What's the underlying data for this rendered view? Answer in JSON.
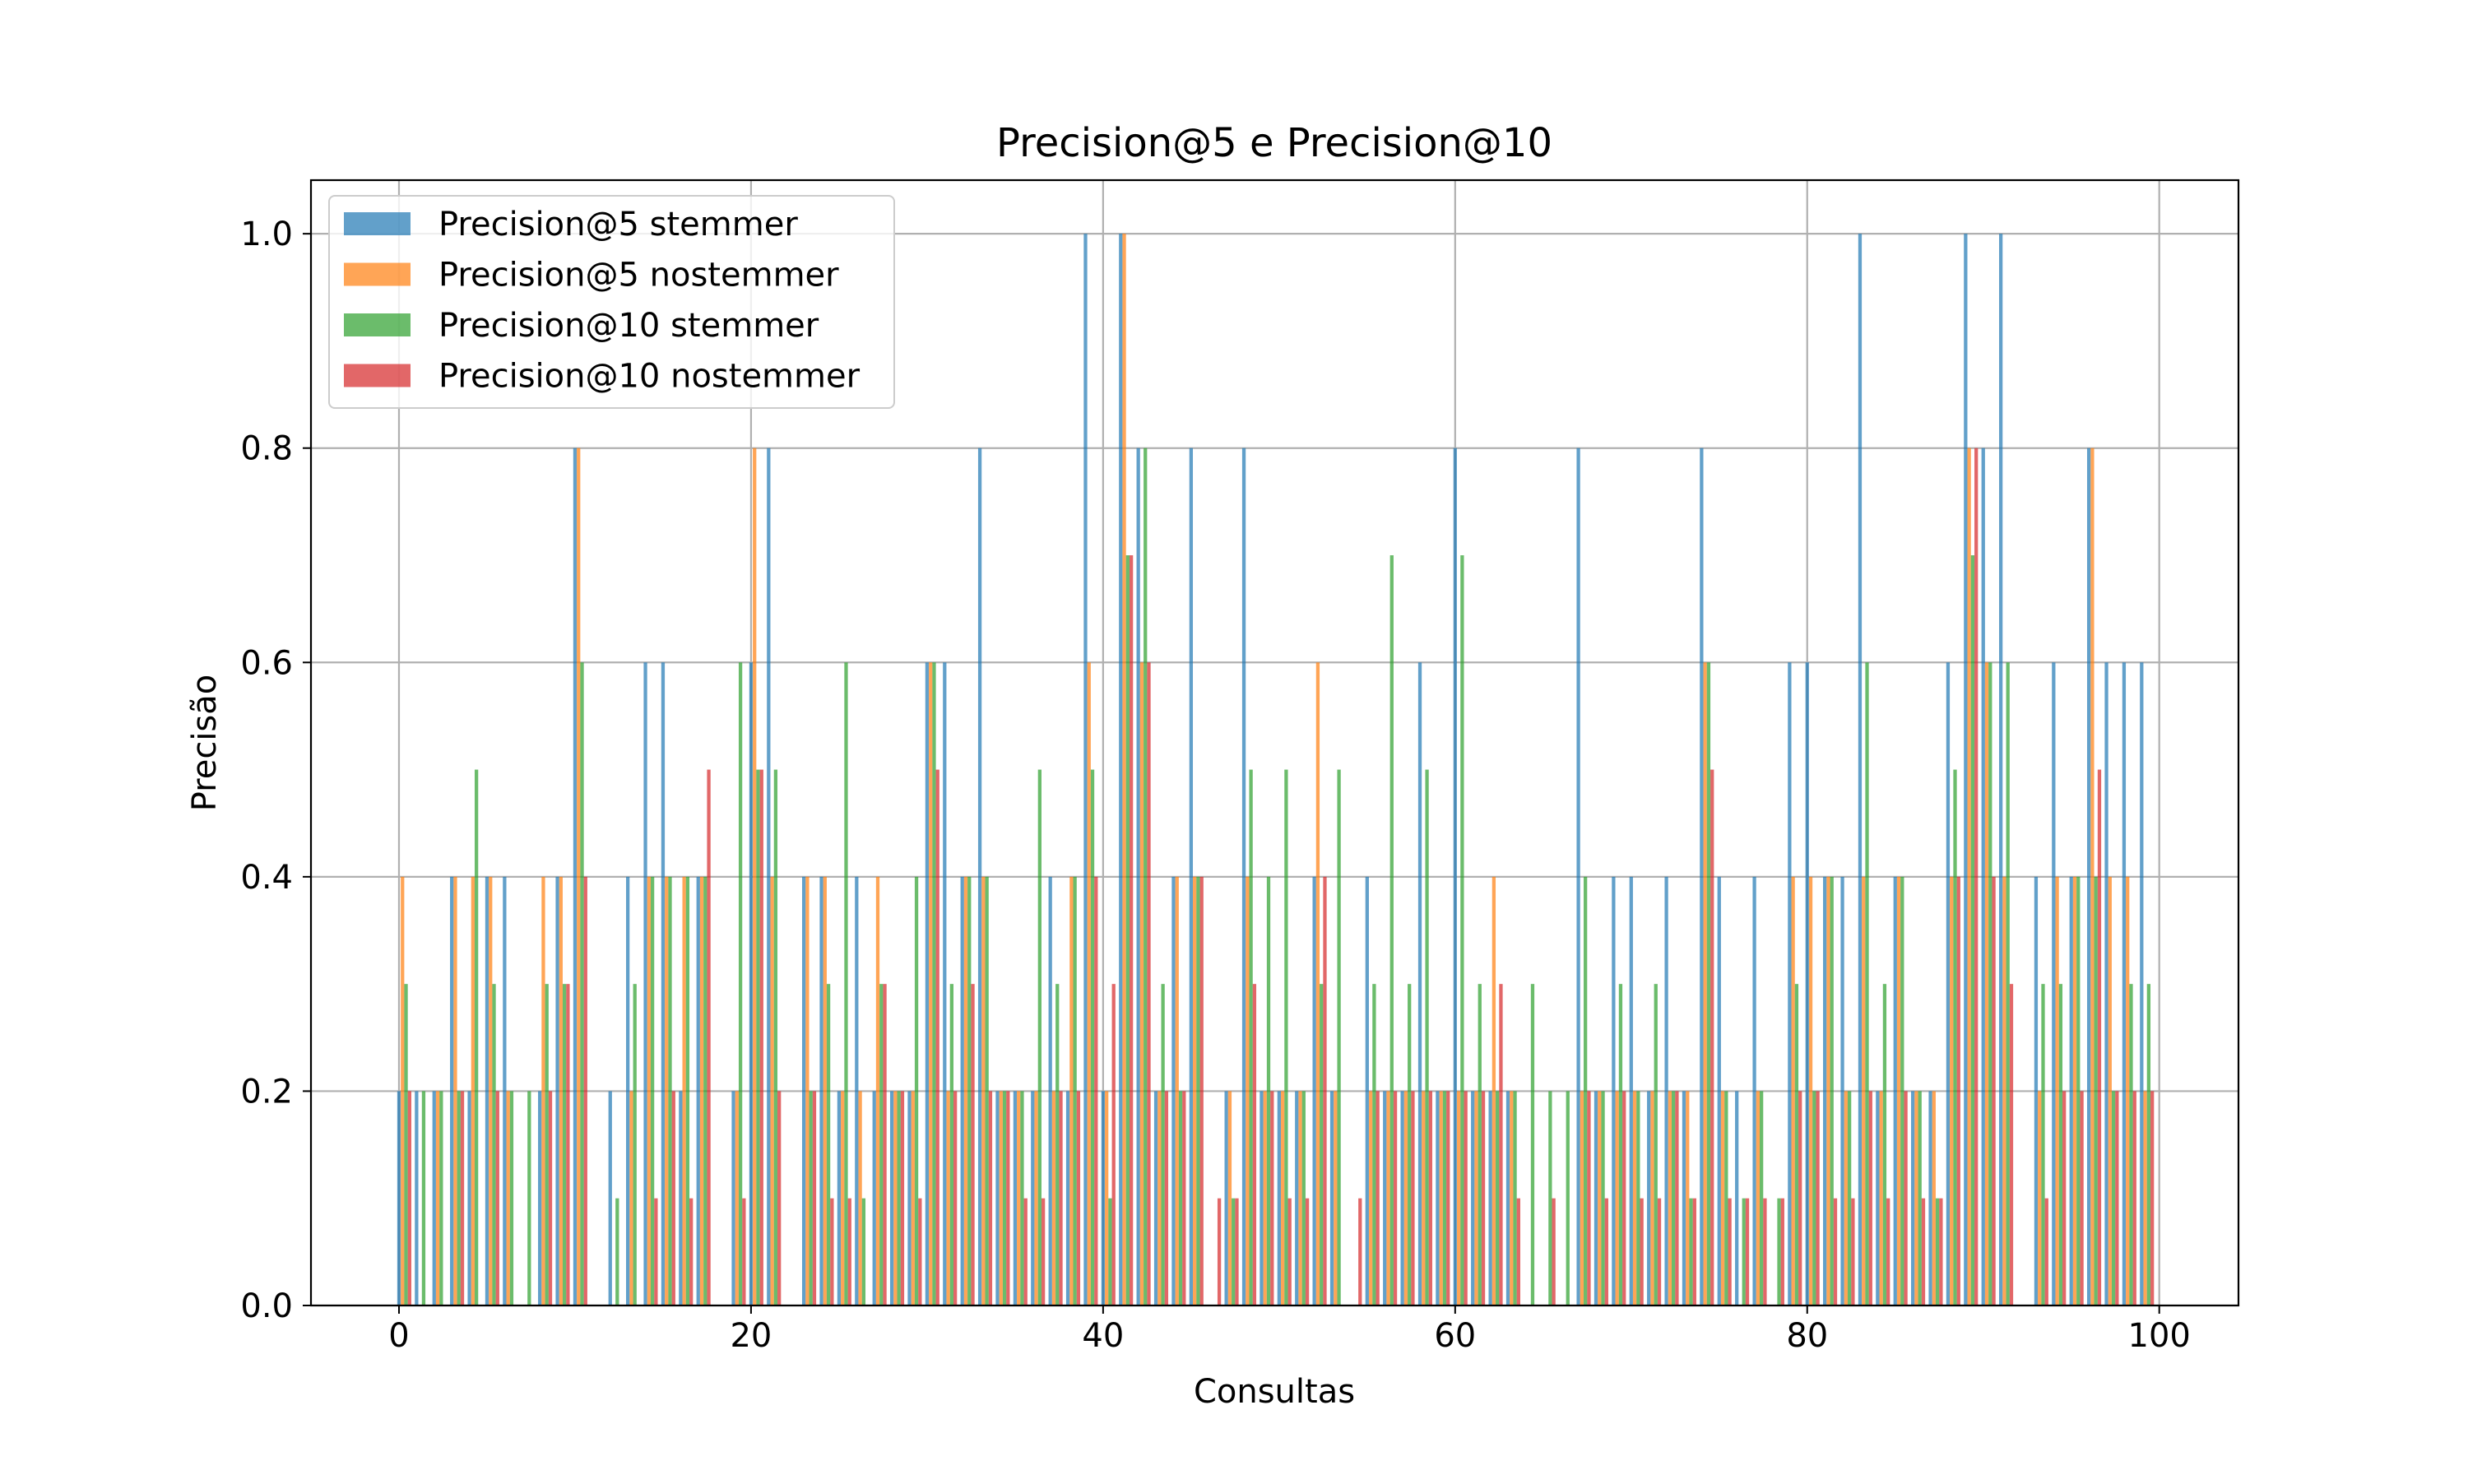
{
  "chart_data": {
    "type": "bar",
    "title": "Precision@5 e Precision@10",
    "xlabel": "Consultas",
    "ylabel": "Precisão",
    "xlim": [
      -5,
      104.5
    ],
    "ylim": [
      0,
      1.05
    ],
    "xticks": [
      0,
      20,
      40,
      60,
      80,
      100
    ],
    "yticks": [
      0.0,
      0.2,
      0.4,
      0.6,
      0.8,
      1.0
    ],
    "xtick_labels": [
      "0",
      "20",
      "40",
      "60",
      "80",
      "100"
    ],
    "ytick_labels": [
      "0.0",
      "0.2",
      "0.4",
      "0.6",
      "0.8",
      "1.0"
    ],
    "grid": true,
    "legend_position": "top-left",
    "bar_opacity": 0.7,
    "x": [
      0,
      1,
      2,
      3,
      4,
      5,
      6,
      7,
      8,
      9,
      10,
      11,
      12,
      13,
      14,
      15,
      16,
      17,
      18,
      19,
      20,
      21,
      22,
      23,
      24,
      25,
      26,
      27,
      28,
      29,
      30,
      31,
      32,
      33,
      34,
      35,
      36,
      37,
      38,
      39,
      40,
      41,
      42,
      43,
      44,
      45,
      46,
      47,
      48,
      49,
      50,
      51,
      52,
      53,
      54,
      55,
      56,
      57,
      58,
      59,
      60,
      61,
      62,
      63,
      64,
      65,
      66,
      67,
      68,
      69,
      70,
      71,
      72,
      73,
      74,
      75,
      76,
      77,
      78,
      79,
      80,
      81,
      82,
      83,
      84,
      85,
      86,
      87,
      88,
      89,
      90,
      91,
      92,
      93,
      94,
      95,
      96,
      97,
      98,
      99
    ],
    "series": [
      {
        "name": "Precision@5 stemmer",
        "color": "#1f77b4",
        "values": [
          0.2,
          0.2,
          0.2,
          0.4,
          0.2,
          0.4,
          0.4,
          0,
          0.2,
          0.4,
          0.8,
          0,
          0.2,
          0.4,
          0.6,
          0.6,
          0.2,
          0.4,
          0,
          0.2,
          0.6,
          0.8,
          0,
          0.4,
          0.4,
          0.2,
          0.4,
          0.2,
          0.2,
          0.2,
          0.6,
          0.6,
          0.4,
          0.8,
          0.2,
          0.2,
          0.2,
          0.4,
          0.2,
          1.0,
          0.2,
          1.0,
          0.8,
          0.2,
          0.4,
          0.8,
          0,
          0.2,
          0.8,
          0.2,
          0.2,
          0.2,
          0.4,
          0.2,
          0,
          0.4,
          0.2,
          0.2,
          0.6,
          0.2,
          0.8,
          0.2,
          0.2,
          0.2,
          0,
          0,
          0,
          0.8,
          0.2,
          0.4,
          0.4,
          0.2,
          0.4,
          0.2,
          0.8,
          0.4,
          0.2,
          0.4,
          0,
          0.6,
          0.6,
          0.4,
          0.4,
          1.0,
          0.2,
          0.4,
          0.2,
          0.2,
          0.6,
          1.0,
          0.8,
          1.0,
          0,
          0.4,
          0.6,
          0.4,
          0.8,
          0.6,
          0.6,
          0.6
        ]
      },
      {
        "name": "Precision@5 nostemmer",
        "color": "#ff7f0e",
        "values": [
          0.4,
          0,
          0.2,
          0.4,
          0.4,
          0.4,
          0.2,
          0,
          0.4,
          0.4,
          0.8,
          0,
          0,
          0.2,
          0.4,
          0.4,
          0.4,
          0.4,
          0,
          0.2,
          0.8,
          0.4,
          0,
          0.4,
          0.4,
          0.2,
          0.2,
          0.4,
          0.2,
          0.2,
          0.6,
          0.2,
          0.4,
          0.4,
          0.2,
          0.2,
          0.2,
          0.2,
          0.4,
          0.6,
          0.2,
          1.0,
          0.6,
          0.2,
          0.4,
          0.4,
          0,
          0.2,
          0.4,
          0.2,
          0.2,
          0.2,
          0.6,
          0.2,
          0,
          0.2,
          0.2,
          0.2,
          0.2,
          0.2,
          0.2,
          0.2,
          0.4,
          0.2,
          0,
          0,
          0,
          0.2,
          0.2,
          0.2,
          0.2,
          0.2,
          0.2,
          0.2,
          0.6,
          0.2,
          0,
          0.2,
          0,
          0.4,
          0.4,
          0.4,
          0.2,
          0.4,
          0.2,
          0.4,
          0.2,
          0.2,
          0.4,
          0.8,
          0.6,
          0.4,
          0,
          0.2,
          0.4,
          0.4,
          0.8,
          0.4,
          0.4,
          0.2
        ]
      },
      {
        "name": "Precision@10 stemmer",
        "color": "#2ca02c",
        "values": [
          0.3,
          0.2,
          0.2,
          0.2,
          0.5,
          0.3,
          0.2,
          0.2,
          0.3,
          0.3,
          0.6,
          0,
          0.1,
          0.3,
          0.4,
          0.4,
          0.4,
          0.4,
          0,
          0.6,
          0.5,
          0.5,
          0,
          0.2,
          0.3,
          0.6,
          0.1,
          0.3,
          0.2,
          0.4,
          0.6,
          0.3,
          0.4,
          0.4,
          0.2,
          0.2,
          0.5,
          0.3,
          0.4,
          0.5,
          0.1,
          0.7,
          0.8,
          0.3,
          0.2,
          0.4,
          0,
          0.1,
          0.5,
          0.4,
          0.5,
          0.2,
          0.3,
          0.5,
          0,
          0.3,
          0.7,
          0.3,
          0.5,
          0.2,
          0.7,
          0.3,
          0.2,
          0.2,
          0.3,
          0.2,
          0.2,
          0.4,
          0.2,
          0.3,
          0.2,
          0.3,
          0.2,
          0.1,
          0.6,
          0.2,
          0.1,
          0.2,
          0.1,
          0.3,
          0.2,
          0.4,
          0.2,
          0.6,
          0.3,
          0.4,
          0.2,
          0.1,
          0.5,
          0.7,
          0.6,
          0.6,
          0,
          0.3,
          0.3,
          0.4,
          0.4,
          0.2,
          0.3,
          0.3
        ]
      },
      {
        "name": "Precision@10 nostemmer",
        "color": "#d62728",
        "values": [
          0.2,
          0,
          0,
          0.2,
          0,
          0.2,
          0,
          0,
          0.2,
          0.3,
          0.4,
          0,
          0,
          0,
          0.1,
          0.2,
          0.1,
          0.5,
          0,
          0.1,
          0.5,
          0.2,
          0,
          0.2,
          0.1,
          0.1,
          0,
          0.3,
          0.2,
          0.1,
          0.5,
          0.2,
          0.3,
          0.2,
          0.2,
          0.1,
          0.1,
          0.2,
          0.2,
          0.4,
          0.3,
          0.7,
          0.6,
          0.2,
          0.2,
          0.4,
          0.1,
          0.1,
          0.3,
          0.2,
          0.1,
          0.1,
          0.4,
          0,
          0.1,
          0.2,
          0.2,
          0.2,
          0.2,
          0.2,
          0.2,
          0.2,
          0.3,
          0.1,
          0,
          0.1,
          0,
          0.2,
          0.1,
          0.2,
          0.1,
          0.1,
          0.2,
          0.1,
          0.5,
          0.1,
          0.1,
          0.1,
          0.1,
          0.2,
          0.2,
          0.1,
          0.1,
          0.2,
          0.1,
          0.2,
          0.1,
          0.1,
          0.4,
          0.8,
          0.4,
          0.3,
          0,
          0.1,
          0.2,
          0.2,
          0.5,
          0.2,
          0.2,
          0.2
        ]
      }
    ]
  }
}
